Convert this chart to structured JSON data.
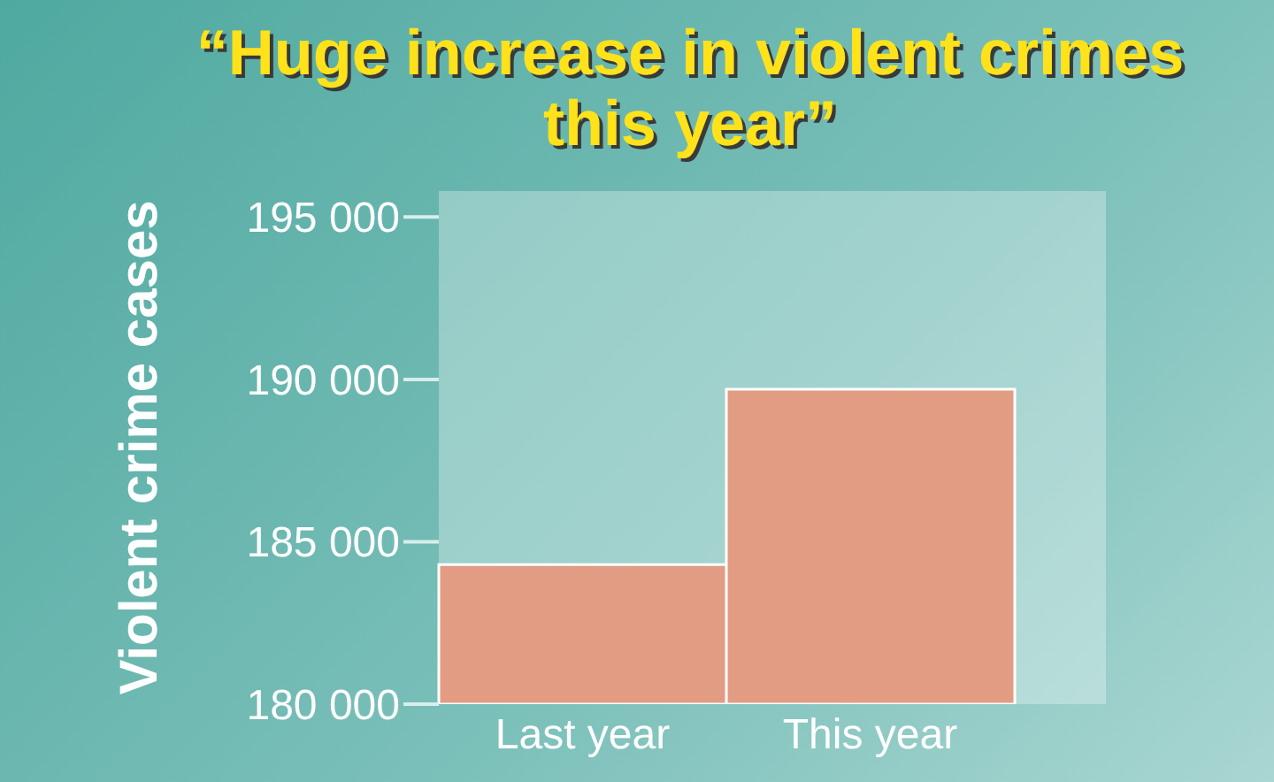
{
  "chart_data": {
    "type": "bar",
    "title": "“Huge increase in violent crimes this year”",
    "ylabel": "Violent crime cases",
    "categories": [
      "Last year",
      "This year"
    ],
    "values": [
      184300,
      189700
    ],
    "color": "#e29c83",
    "ylim": [
      180000,
      195800
    ],
    "yticks": [
      {
        "value": 180000,
        "label": "180 000"
      },
      {
        "value": 185000,
        "label": "185 000"
      },
      {
        "value": 190000,
        "label": "190 000"
      },
      {
        "value": 195000,
        "label": "195 000"
      }
    ]
  }
}
